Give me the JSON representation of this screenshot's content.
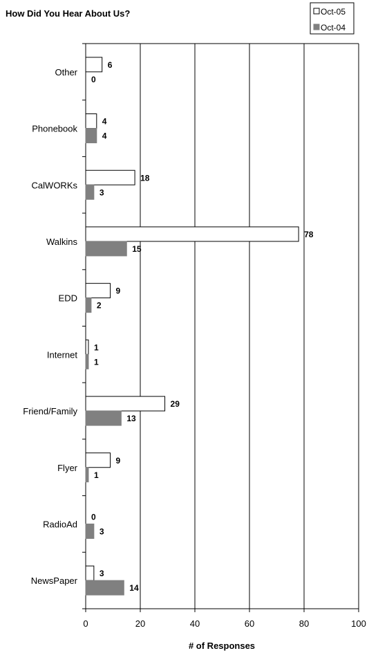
{
  "chart_data": {
    "type": "bar",
    "orientation": "horizontal",
    "title": "How Did You Hear About Us?",
    "xlabel": "# of Responses",
    "xlim": [
      0,
      100
    ],
    "xticks": [
      0,
      20,
      40,
      60,
      80,
      100
    ],
    "grid": true,
    "legend_position": "top-right",
    "categories": [
      "Other",
      "Phonebook",
      "CalWORKs",
      "Walkins",
      "EDD",
      "Internet",
      "Friend/Family",
      "Flyer",
      "RadioAd",
      "NewsPaper"
    ],
    "series": [
      {
        "name": "Oct-05",
        "color": "#ffffff",
        "values": [
          6,
          4,
          18,
          78,
          9,
          1,
          29,
          9,
          0,
          3
        ]
      },
      {
        "name": "Oct-04",
        "color": "#808080",
        "values": [
          0,
          4,
          3,
          15,
          2,
          1,
          13,
          1,
          3,
          14
        ]
      }
    ]
  }
}
